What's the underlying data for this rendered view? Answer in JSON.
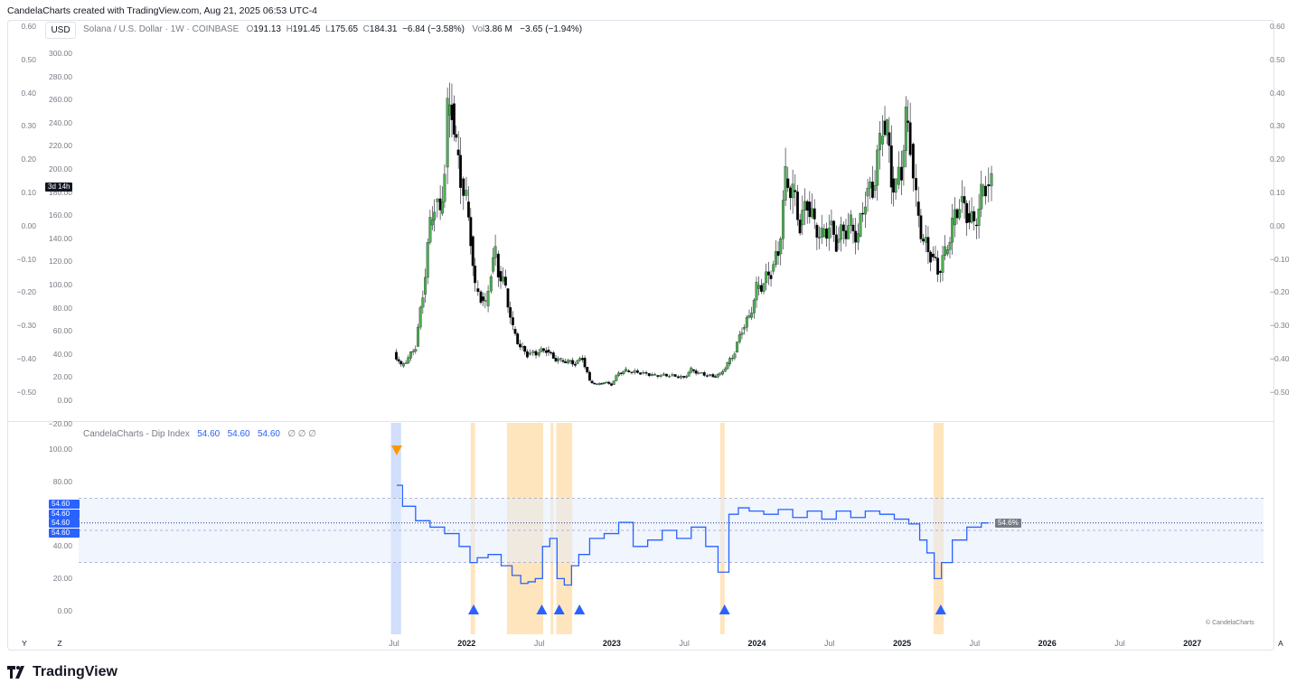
{
  "credit": "CandelaCharts created with TradingView.com, Aug 21, 2025 06:53 UTC-4",
  "currency": "USD",
  "symbol_line": {
    "name": "Solana / U.S. Dollar · 1W · COINBASE",
    "o_label": "O",
    "o": "191.13",
    "h_label": "H",
    "h": "191.45",
    "l_label": "L",
    "l": "175.65",
    "c_label": "C",
    "c": "184.31",
    "change": "−6.84 (−3.58%)",
    "vol_label": "Vol",
    "vol": "3.86 M",
    "vol_change": "−3.65 (−1.94%)"
  },
  "countdown": "3d 14h",
  "price_axis": [
    "300.00",
    "280.00",
    "260.00",
    "240.00",
    "220.00",
    "200.00",
    "180.00",
    "160.00",
    "140.00",
    "120.00",
    "100.00",
    "80.00",
    "60.00",
    "40.00",
    "20.00",
    "0.00",
    "−20.00"
  ],
  "left_outer_axis": [
    "0.60",
    "0.50",
    "0.40",
    "0.30",
    "0.20",
    "0.10",
    "0.00",
    "−0.10",
    "−0.20",
    "−0.30",
    "−0.40",
    "−0.50"
  ],
  "right_axis": [
    "0.60",
    "0.50",
    "0.40",
    "0.30",
    "0.20",
    "0.10",
    "0.00",
    "−0.10",
    "−0.20",
    "−0.30",
    "−0.40",
    "−0.50"
  ],
  "indicator": {
    "name": "CandelaCharts - Dip Index",
    "v1": "54.60",
    "v2": "54.60",
    "v3": "54.60",
    "na_icons": "∅  ∅  ∅",
    "axis": [
      "100.00",
      "80.00",
      "60.00",
      "40.00",
      "20.00",
      "0.00"
    ],
    "tags": [
      "54.60",
      "54.60",
      "54.60",
      "54.60"
    ],
    "last_tag": "54.6%",
    "copyright": "© CandelaCharts"
  },
  "time_axis": [
    {
      "label": "Jul",
      "bold": false
    },
    {
      "label": "2022",
      "bold": true
    },
    {
      "label": "Jul",
      "bold": false
    },
    {
      "label": "2023",
      "bold": true
    },
    {
      "label": "Jul",
      "bold": false
    },
    {
      "label": "2024",
      "bold": true
    },
    {
      "label": "Jul",
      "bold": false
    },
    {
      "label": "2025",
      "bold": true
    },
    {
      "label": "Jul",
      "bold": false
    },
    {
      "label": "2026",
      "bold": true
    },
    {
      "label": "Jul",
      "bold": false
    },
    {
      "label": "2027",
      "bold": true
    }
  ],
  "corner_buttons": {
    "y": "Y",
    "z": "Z",
    "a": "A"
  },
  "brand": "TradingView",
  "colors": {
    "up": "#4caf50",
    "down": "#000000",
    "dip_line": "#2962ff",
    "band": "#e3ecfd",
    "highlight_blue": "#c9d8fb",
    "highlight_orange": "#ffe0b2",
    "triangle_blue": "#2962ff",
    "triangle_orange": "#ff9800"
  },
  "price_series": [
    [
      2021.5,
      40
    ],
    [
      2021.55,
      28
    ],
    [
      2021.6,
      35
    ],
    [
      2021.65,
      45
    ],
    [
      2021.7,
      90
    ],
    [
      2021.75,
      150
    ],
    [
      2021.78,
      170
    ],
    [
      2021.82,
      160
    ],
    [
      2021.85,
      200
    ],
    [
      2021.87,
      245
    ],
    [
      2021.9,
      255
    ],
    [
      2021.93,
      215
    ],
    [
      2021.96,
      190
    ],
    [
      2022.0,
      170
    ],
    [
      2022.03,
      140
    ],
    [
      2022.06,
      95
    ],
    [
      2022.1,
      88
    ],
    [
      2022.13,
      80
    ],
    [
      2022.17,
      110
    ],
    [
      2022.2,
      125
    ],
    [
      2022.22,
      110
    ],
    [
      2022.27,
      95
    ],
    [
      2022.32,
      60
    ],
    [
      2022.37,
      45
    ],
    [
      2022.42,
      38
    ],
    [
      2022.5,
      40
    ],
    [
      2022.55,
      42
    ],
    [
      2022.6,
      35
    ],
    [
      2022.65,
      33
    ],
    [
      2022.7,
      32
    ],
    [
      2022.75,
      30
    ],
    [
      2022.8,
      35
    ],
    [
      2022.85,
      15
    ],
    [
      2022.9,
      12
    ],
    [
      2022.95,
      14
    ],
    [
      2023.0,
      12
    ],
    [
      2023.05,
      22
    ],
    [
      2023.1,
      24
    ],
    [
      2023.2,
      22
    ],
    [
      2023.3,
      20
    ],
    [
      2023.4,
      20
    ],
    [
      2023.5,
      18
    ],
    [
      2023.55,
      25
    ],
    [
      2023.6,
      22
    ],
    [
      2023.7,
      19
    ],
    [
      2023.75,
      21
    ],
    [
      2023.8,
      30
    ],
    [
      2023.85,
      40
    ],
    [
      2023.9,
      60
    ],
    [
      2023.95,
      70
    ],
    [
      2024.0,
      95
    ],
    [
      2024.05,
      100
    ],
    [
      2024.1,
      110
    ],
    [
      2024.15,
      125
    ],
    [
      2024.2,
      190
    ],
    [
      2024.25,
      180
    ],
    [
      2024.3,
      150
    ],
    [
      2024.35,
      170
    ],
    [
      2024.4,
      150
    ],
    [
      2024.45,
      140
    ],
    [
      2024.5,
      150
    ],
    [
      2024.55,
      135
    ],
    [
      2024.6,
      145
    ],
    [
      2024.65,
      150
    ],
    [
      2024.7,
      140
    ],
    [
      2024.75,
      175
    ],
    [
      2024.8,
      180
    ],
    [
      2024.85,
      220
    ],
    [
      2024.87,
      240
    ],
    [
      2024.9,
      230
    ],
    [
      2024.93,
      190
    ],
    [
      2024.96,
      185
    ],
    [
      2025.0,
      200
    ],
    [
      2025.03,
      240
    ],
    [
      2025.06,
      220
    ],
    [
      2025.1,
      170
    ],
    [
      2025.15,
      135
    ],
    [
      2025.2,
      125
    ],
    [
      2025.25,
      110
    ],
    [
      2025.3,
      125
    ],
    [
      2025.35,
      150
    ],
    [
      2025.4,
      170
    ],
    [
      2025.45,
      160
    ],
    [
      2025.5,
      150
    ],
    [
      2025.55,
      175
    ],
    [
      2025.58,
      185
    ],
    [
      2025.62,
      184
    ]
  ],
  "dip_series": [
    [
      2021.52,
      78
    ],
    [
      2021.6,
      65
    ],
    [
      2021.7,
      56
    ],
    [
      2021.8,
      52
    ],
    [
      2021.9,
      48
    ],
    [
      2022.0,
      40
    ],
    [
      2022.05,
      30
    ],
    [
      2022.1,
      33
    ],
    [
      2022.2,
      35
    ],
    [
      2022.28,
      28
    ],
    [
      2022.35,
      22
    ],
    [
      2022.4,
      17
    ],
    [
      2022.45,
      18
    ],
    [
      2022.5,
      20
    ],
    [
      2022.55,
      40
    ],
    [
      2022.6,
      45
    ],
    [
      2022.65,
      20
    ],
    [
      2022.7,
      16
    ],
    [
      2022.75,
      28
    ],
    [
      2022.8,
      35
    ],
    [
      2022.9,
      45
    ],
    [
      2023.0,
      48
    ],
    [
      2023.1,
      55
    ],
    [
      2023.2,
      40
    ],
    [
      2023.3,
      44
    ],
    [
      2023.4,
      50
    ],
    [
      2023.5,
      45
    ],
    [
      2023.6,
      52
    ],
    [
      2023.7,
      40
    ],
    [
      2023.77,
      24
    ],
    [
      2023.85,
      60
    ],
    [
      2023.9,
      64
    ],
    [
      2024.0,
      62
    ],
    [
      2024.1,
      60
    ],
    [
      2024.2,
      63
    ],
    [
      2024.3,
      58
    ],
    [
      2024.4,
      62
    ],
    [
      2024.5,
      57
    ],
    [
      2024.6,
      62
    ],
    [
      2024.7,
      58
    ],
    [
      2024.8,
      62
    ],
    [
      2024.9,
      60
    ],
    [
      2025.0,
      57
    ],
    [
      2025.1,
      54
    ],
    [
      2025.15,
      44
    ],
    [
      2025.2,
      36
    ],
    [
      2025.25,
      20
    ],
    [
      2025.3,
      30
    ],
    [
      2025.4,
      44
    ],
    [
      2025.5,
      52
    ],
    [
      2025.6,
      54.6
    ]
  ],
  "dip_bands": [
    {
      "kind": "blue",
      "from": 2021.48,
      "to": 2021.55
    },
    {
      "kind": "orange",
      "from": 2022.03,
      "to": 2022.06
    },
    {
      "kind": "orange",
      "from": 2022.28,
      "to": 2022.53
    },
    {
      "kind": "orange",
      "from": 2022.58,
      "to": 2022.6
    },
    {
      "kind": "orange",
      "from": 2022.62,
      "to": 2022.73
    },
    {
      "kind": "orange",
      "from": 2023.75,
      "to": 2023.78
    },
    {
      "kind": "orange",
      "from": 2025.22,
      "to": 2025.29
    }
  ],
  "dip_signals_up": [
    2022.05,
    2022.52,
    2022.64,
    2022.78,
    2023.78,
    2025.27
  ],
  "dip_signals_down": [
    2021.52
  ]
}
